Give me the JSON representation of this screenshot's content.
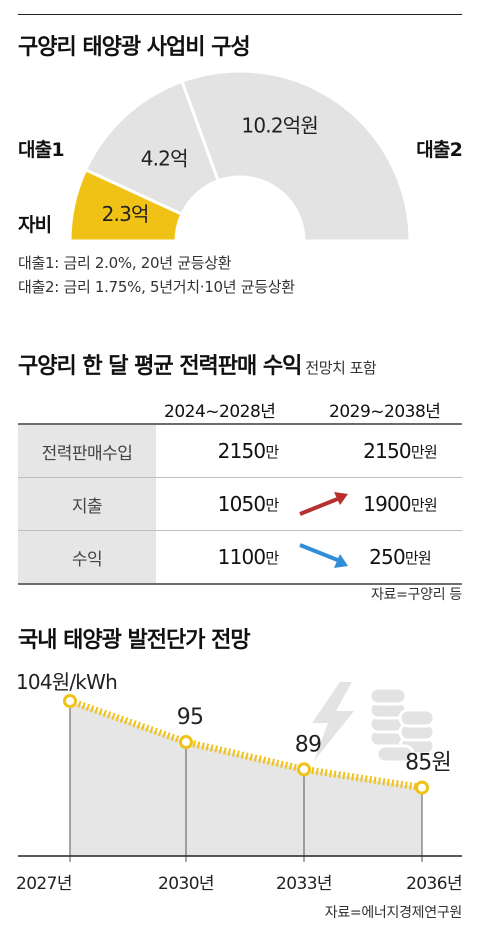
{
  "section1": {
    "title": "구양리 태양광 사업비 구성",
    "segments": [
      {
        "label": "자비",
        "value_text": "2.3억",
        "value": 2.3,
        "color": "#f1c216"
      },
      {
        "label": "대출1",
        "value_text": "4.2억",
        "value": 4.2,
        "color": "#e3e3e3"
      },
      {
        "label": "대출2",
        "value_text": "10.2억원",
        "value": 10.2,
        "color": "#e3e3e3"
      }
    ],
    "notes": [
      "대출1: 금리 2.0%, 20년 균등상환",
      "대출2: 금리 1.75%, 5년거치·10년 균등상환"
    ]
  },
  "section2": {
    "title": "구양리 한 달 평균 전력판매 수익",
    "subtitle": "전망치 포함",
    "columns": [
      "2024~2028년",
      "2029~2038년"
    ],
    "rows": [
      {
        "label": "전력판매수입",
        "v1": "2150",
        "u1": "만",
        "v2": "2150",
        "u2": "만원",
        "trend": "none"
      },
      {
        "label": "지출",
        "v1": "1050",
        "u1": "만",
        "v2": "1900",
        "u2": "만원",
        "trend": "up"
      },
      {
        "label": "수익",
        "v1": "1100",
        "u1": "만",
        "v2": "250",
        "u2": "만원",
        "trend": "down"
      }
    ],
    "source": "자료=구양리 등",
    "arrow_colors": {
      "up": "#b5302e",
      "down": "#2f8ed6"
    }
  },
  "section3": {
    "title": "국내 태양광 발전단가 전망",
    "source": "자료=에너지경제연구원",
    "icons": [
      "lightning-icon",
      "coin-stack-icon"
    ]
  },
  "chart_data": [
    {
      "type": "pie",
      "title": "구양리 태양광 사업비 구성",
      "categories": [
        "자비",
        "대출1",
        "대출2"
      ],
      "values": [
        2.3,
        4.2,
        10.2
      ],
      "unit": "억원"
    },
    {
      "type": "line",
      "title": "국내 태양광 발전단가 전망",
      "x": [
        "2027년",
        "2030년",
        "2033년",
        "2036년"
      ],
      "y": [
        104,
        95,
        89,
        85
      ],
      "labels": [
        "104원/kWh",
        "95",
        "89",
        "85원"
      ],
      "ylim": [
        70,
        104
      ],
      "line_color": "#f1c216",
      "area_color": "#e6e6e6"
    }
  ]
}
